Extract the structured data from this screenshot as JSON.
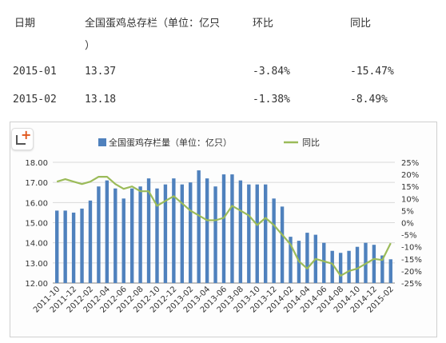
{
  "table": {
    "headers": {
      "date": "日期",
      "stock": "全国蛋鸡总存栏（单位：亿只",
      "stock_cont": "）",
      "mom": "环比",
      "yoy": "同比"
    },
    "rows": [
      {
        "date": "2015-01",
        "stock": "13.37",
        "mom": "-3.84%",
        "yoy": "-15.47%"
      },
      {
        "date": "2015-02",
        "stock": "13.18",
        "mom": "-1.38%",
        "yoy": "-8.49%"
      }
    ]
  },
  "chart_data": {
    "type": "bar",
    "legend": {
      "bar": "全国蛋鸡存栏量（单位：亿只）",
      "line": "同比",
      "position": "top"
    },
    "categories": [
      "2011-10",
      "2011-11",
      "2011-12",
      "2012-01",
      "2012-02",
      "2012-03",
      "2012-04",
      "2012-05",
      "2012-06",
      "2012-07",
      "2012-08",
      "2012-09",
      "2012-10",
      "2012-11",
      "2012-12",
      "2013-01",
      "2013-02",
      "2013-03",
      "2013-04",
      "2013-05",
      "2013-06",
      "2013-07",
      "2013-08",
      "2013-09",
      "2013-10",
      "2013-11",
      "2013-12",
      "2014-01",
      "2014-02",
      "2014-03",
      "2014-04",
      "2014-05",
      "2014-06",
      "2014-07",
      "2014-08",
      "2014-09",
      "2014-10",
      "2014-11",
      "2014-12",
      "2015-01",
      "2015-02"
    ],
    "tick_labels": [
      "2011-10",
      "2011-12",
      "2012-02",
      "2012-04",
      "2012-06",
      "2012-08",
      "2012-10",
      "2012-12",
      "2013-02",
      "2013-04",
      "2013-06",
      "2013-08",
      "2013-10",
      "2013-12",
      "2014-02",
      "2014-04",
      "2014-06",
      "2014-08",
      "2014-10",
      "2014-12",
      "2015-02"
    ],
    "series": [
      {
        "name": "全国蛋鸡存栏量（单位：亿只）",
        "type": "bar",
        "axis": "left",
        "color": "#4f81bd",
        "values": [
          15.6,
          15.6,
          15.5,
          15.7,
          16.1,
          16.8,
          17.1,
          16.7,
          16.2,
          16.7,
          16.8,
          17.2,
          16.7,
          16.9,
          17.2,
          16.9,
          17.0,
          17.6,
          17.2,
          16.8,
          17.4,
          17.4,
          17.1,
          16.9,
          16.9,
          16.9,
          16.2,
          15.8,
          14.3,
          14.1,
          14.5,
          14.4,
          14.0,
          13.6,
          13.5,
          13.6,
          13.8,
          14.0,
          13.9,
          13.37,
          13.18
        ]
      },
      {
        "name": "同比",
        "type": "line",
        "axis": "right",
        "color": "#9bbb59",
        "values": [
          17,
          18,
          17,
          16,
          17,
          19,
          19,
          16,
          14,
          15,
          13,
          13,
          7,
          9,
          11,
          8,
          5,
          3,
          1,
          1,
          2,
          7,
          5,
          3,
          -1,
          2,
          -1,
          -5,
          -9,
          -16,
          -19,
          -15,
          -16,
          -17,
          -22,
          -20,
          -19,
          -17,
          -15,
          -15.47,
          -8.49
        ]
      }
    ],
    "ylim_left": [
      12.0,
      18.0
    ],
    "yticks_left": [
      "12.00",
      "13.00",
      "14.00",
      "15.00",
      "16.00",
      "17.00",
      "18.00"
    ],
    "ylim_right": [
      -25,
      25
    ],
    "yticks_right": [
      "-25%",
      "-20%",
      "-15%",
      "-10%",
      "-5%",
      "0%",
      "5%",
      "10%",
      "15%",
      "20%",
      "25%"
    ],
    "grid": true
  }
}
